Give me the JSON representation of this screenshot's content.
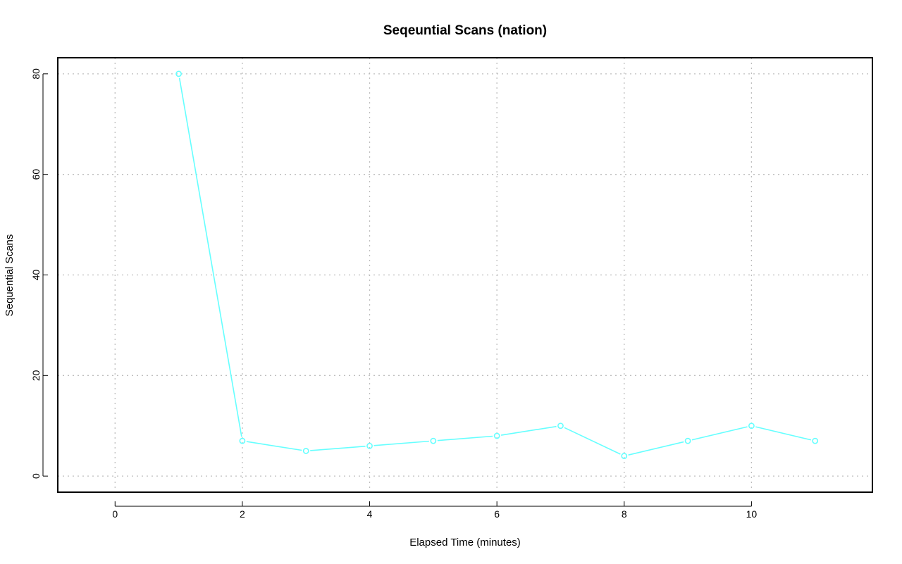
{
  "chart_data": {
    "type": "line",
    "title": "Seqeuntial Scans (nation)",
    "xlabel": "Elapsed Time (minutes)",
    "ylabel": "Sequential Scans",
    "xlim": [
      -0.9,
      11.9
    ],
    "ylim": [
      -3.2,
      83.2
    ],
    "xticks": [
      0,
      2,
      4,
      6,
      8,
      10
    ],
    "yticks": [
      0,
      20,
      40,
      60,
      80
    ],
    "grid": true,
    "series": [
      {
        "color": "#66ffff",
        "marker": "circle-open",
        "x": [
          1,
          2,
          3,
          4,
          5,
          6,
          7,
          8,
          9,
          10,
          11
        ],
        "y": [
          80,
          7,
          5,
          6,
          7,
          8,
          10,
          4,
          7,
          10,
          7
        ]
      }
    ]
  }
}
